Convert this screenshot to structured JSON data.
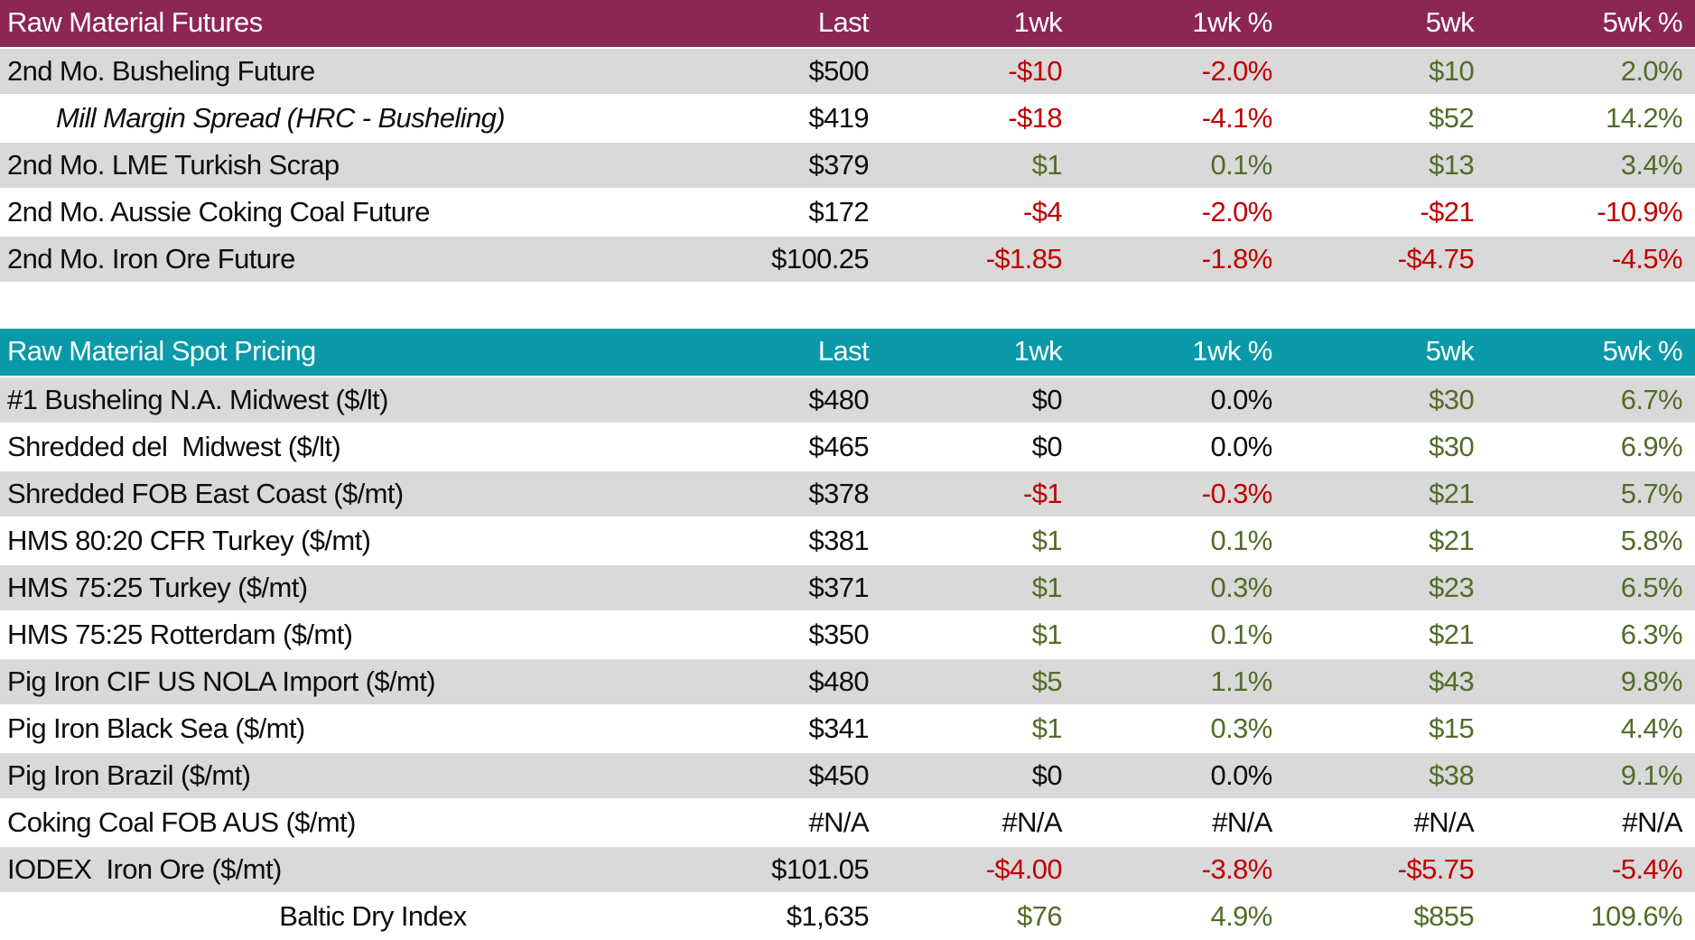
{
  "colors": {
    "futures_header_bg": "#8C2655",
    "spot_header_bg": "#0999A8",
    "row_alt_bg": "#D9D9D9",
    "positive": "#546B2A",
    "negative": "#C00000",
    "header_text": "#FFFFFF",
    "body_text": "#0B0D11"
  },
  "columns": [
    "Last",
    "1wk",
    "1wk %",
    "5wk",
    "5wk %"
  ],
  "tables": [
    {
      "title": "Raw Material Futures",
      "rows": [
        {
          "label": "2nd Mo. Busheling Future",
          "style": "",
          "values": [
            "$500",
            "-$10",
            "-2.0%",
            "$10",
            "2.0%"
          ]
        },
        {
          "label": "Mill Margin Spread (HRC - Busheling)",
          "style": "italic-indent",
          "values": [
            "$419",
            "-$18",
            "-4.1%",
            "$52",
            "14.2%"
          ]
        },
        {
          "label": "2nd Mo. LME Turkish Scrap",
          "style": "",
          "values": [
            "$379",
            "$1",
            "0.1%",
            "$13",
            "3.4%"
          ]
        },
        {
          "label": "2nd Mo. Aussie Coking Coal Future",
          "style": "",
          "values": [
            "$172",
            "-$4",
            "-2.0%",
            "-$21",
            "-10.9%"
          ]
        },
        {
          "label": "2nd Mo. Iron Ore Future",
          "style": "",
          "values": [
            "$100.25",
            "-$1.85",
            "-1.8%",
            "-$4.75",
            "-4.5%"
          ]
        }
      ]
    },
    {
      "title": "Raw Material Spot Pricing",
      "rows": [
        {
          "label": "#1 Busheling N.A. Midwest ($/lt)",
          "style": "",
          "values": [
            "$480",
            "$0",
            "0.0%",
            "$30",
            "6.7%"
          ]
        },
        {
          "label": "Shredded del  Midwest ($/lt)",
          "style": "",
          "values": [
            "$465",
            "$0",
            "0.0%",
            "$30",
            "6.9%"
          ]
        },
        {
          "label": "Shredded FOB East Coast ($/mt)",
          "style": "",
          "values": [
            "$378",
            "-$1",
            "-0.3%",
            "$21",
            "5.7%"
          ]
        },
        {
          "label": "HMS 80:20 CFR Turkey ($/mt)",
          "style": "",
          "values": [
            "$381",
            "$1",
            "0.1%",
            "$21",
            "5.8%"
          ]
        },
        {
          "label": "HMS 75:25 Turkey ($/mt)",
          "style": "",
          "values": [
            "$371",
            "$1",
            "0.3%",
            "$23",
            "6.5%"
          ]
        },
        {
          "label": "HMS 75:25 Rotterdam ($/mt)",
          "style": "",
          "values": [
            "$350",
            "$1",
            "0.1%",
            "$21",
            "6.3%"
          ]
        },
        {
          "label": "Pig Iron CIF US NOLA Import ($/mt)",
          "style": "",
          "values": [
            "$480",
            "$5",
            "1.1%",
            "$43",
            "9.8%"
          ]
        },
        {
          "label": "Pig Iron Black Sea ($/mt)",
          "style": "",
          "values": [
            "$341",
            "$1",
            "0.3%",
            "$15",
            "4.4%"
          ]
        },
        {
          "label": "Pig Iron Brazil ($/mt)",
          "style": "",
          "values": [
            "$450",
            "$0",
            "0.0%",
            "$38",
            "9.1%"
          ]
        },
        {
          "label": "Coking Coal FOB AUS ($/mt)",
          "style": "",
          "values": [
            "#N/A",
            "#N/A",
            "#N/A",
            "#N/A",
            "#N/A"
          ]
        },
        {
          "label": "IODEX  Iron Ore ($/mt)",
          "style": "",
          "values": [
            "$101.05",
            "-$4.00",
            "-3.8%",
            "-$5.75",
            "-5.4%"
          ]
        },
        {
          "label": "Baltic Dry Index",
          "style": "center-label",
          "values": [
            "$1,635",
            "$76",
            "4.9%",
            "$855",
            "109.6%"
          ]
        }
      ]
    }
  ],
  "chart_data": [
    {
      "type": "table",
      "title": "Raw Material Futures",
      "columns": [
        "",
        "Last",
        "1wk",
        "1wk %",
        "5wk",
        "5wk %"
      ],
      "rows": [
        [
          "2nd Mo. Busheling Future",
          "$500",
          "-$10",
          "-2.0%",
          "$10",
          "2.0%"
        ],
        [
          "Mill Margin Spread (HRC - Busheling)",
          "$419",
          "-$18",
          "-4.1%",
          "$52",
          "14.2%"
        ],
        [
          "2nd Mo. LME Turkish Scrap",
          "$379",
          "$1",
          "0.1%",
          "$13",
          "3.4%"
        ],
        [
          "2nd Mo. Aussie Coking Coal Future",
          "$172",
          "-$4",
          "-2.0%",
          "-$21",
          "-10.9%"
        ],
        [
          "2nd Mo. Iron Ore Future",
          "$100.25",
          "-$1.85",
          "-1.8%",
          "-$4.75",
          "-4.5%"
        ]
      ]
    },
    {
      "type": "table",
      "title": "Raw Material Spot Pricing",
      "columns": [
        "",
        "Last",
        "1wk",
        "1wk %",
        "5wk",
        "5wk %"
      ],
      "rows": [
        [
          "#1 Busheling N.A. Midwest ($/lt)",
          "$480",
          "$0",
          "0.0%",
          "$30",
          "6.7%"
        ],
        [
          "Shredded del  Midwest ($/lt)",
          "$465",
          "$0",
          "0.0%",
          "$30",
          "6.9%"
        ],
        [
          "Shredded FOB East Coast ($/mt)",
          "$378",
          "-$1",
          "-0.3%",
          "$21",
          "5.7%"
        ],
        [
          "HMS 80:20 CFR Turkey ($/mt)",
          "$381",
          "$1",
          "0.1%",
          "$21",
          "5.8%"
        ],
        [
          "HMS 75:25 Turkey ($/mt)",
          "$371",
          "$1",
          "0.3%",
          "$23",
          "6.5%"
        ],
        [
          "HMS 75:25 Rotterdam ($/mt)",
          "$350",
          "$1",
          "0.1%",
          "$21",
          "6.3%"
        ],
        [
          "Pig Iron CIF US NOLA Import ($/mt)",
          "$480",
          "$5",
          "1.1%",
          "$43",
          "9.8%"
        ],
        [
          "Pig Iron Black Sea ($/mt)",
          "$341",
          "$1",
          "0.3%",
          "$15",
          "4.4%"
        ],
        [
          "Pig Iron Brazil ($/mt)",
          "$450",
          "$0",
          "0.0%",
          "$38",
          "9.1%"
        ],
        [
          "Coking Coal FOB AUS ($/mt)",
          "#N/A",
          "#N/A",
          "#N/A",
          "#N/A",
          "#N/A"
        ],
        [
          "IODEX  Iron Ore ($/mt)",
          "$101.05",
          "-$4.00",
          "-3.8%",
          "-$5.75",
          "-5.4%"
        ],
        [
          "Baltic Dry Index",
          "$1,635",
          "$76",
          "4.9%",
          "$855",
          "109.6%"
        ]
      ]
    }
  ]
}
